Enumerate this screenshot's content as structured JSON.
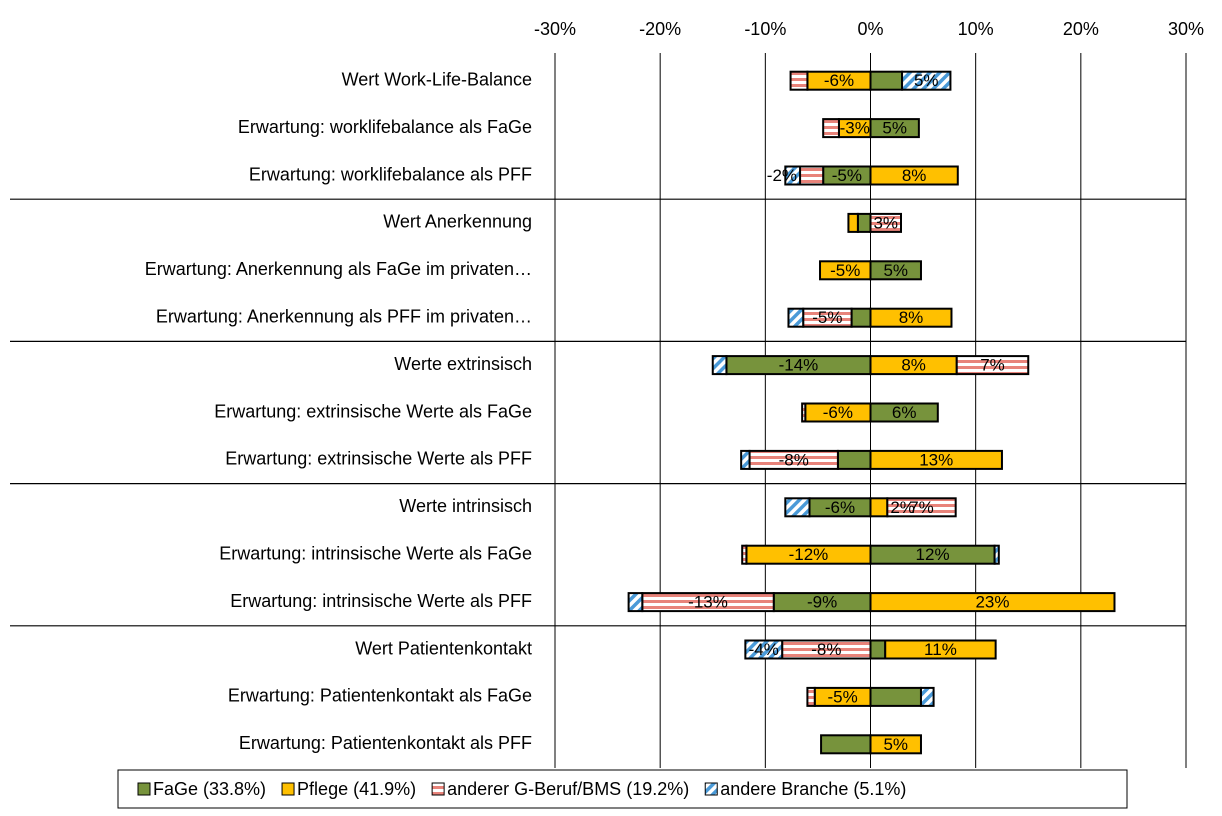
{
  "chart_data": {
    "type": "diverging-bar",
    "categories": [
      "Wert Work-Life-Balance",
      "Erwartung: worklifebalance als FaGe",
      "Erwartung: worklifebalance als PFF",
      "Wert Anerkennung",
      "Erwartung: Anerkennung als FaGe im privaten…",
      "Erwartung: Anerkennung als PFF im privaten…",
      "Werte extrinsisch",
      "Erwartung: extrinsische Werte als FaGe",
      "Erwartung: extrinsische Werte als PFF",
      "Werte intrinsisch",
      "Erwartung: intrinsische Werte als FaGe",
      "Erwartung: intrinsische Werte als PFF",
      "Wert Patientenkontakt",
      "Erwartung: Patientenkontakt als FaGe",
      "Erwartung: Patientenkontakt als PFF"
    ],
    "series": [
      {
        "name": "FaGe (33.8%)",
        "color": "#77933c",
        "pattern": "solid",
        "values": [
          3,
          4.6,
          -4.5,
          -1.2,
          4.8,
          -1.8,
          -13.7,
          6.4,
          -3.1,
          -5.8,
          11.8,
          -9.2,
          1.4,
          4.8,
          -4.7
        ],
        "value_labels": [
          null,
          "5%",
          "-5%",
          null,
          "5%",
          null,
          "-14%",
          "6%",
          null,
          "-6%",
          "12%",
          "-9%",
          null,
          null,
          null
        ]
      },
      {
        "name": "Pflege (41.9%)",
        "color": "#ffc000",
        "pattern": "solid",
        "values": [
          -6,
          -3,
          8.3,
          -0.9,
          -4.8,
          7.7,
          8.2,
          -6.2,
          12.5,
          1.6,
          -11.8,
          23.2,
          10.5,
          -5.3,
          4.8
        ],
        "value_labels": [
          "-6%",
          "-3%",
          "8%",
          null,
          "-5%",
          "8%",
          "8%",
          "-6%",
          "13%",
          "2%",
          "-12%",
          "23%",
          "11%",
          "-5%",
          "5%"
        ]
      },
      {
        "name": "anderer G-Beruf/BMS (19.2%)",
        "color": "#e8837a",
        "pattern": "horizontal",
        "values": [
          -1.6,
          -1.5,
          -2.2,
          2.9,
          0,
          -4.6,
          6.8,
          -0.3,
          -8.4,
          6.5,
          -0.4,
          -12.5,
          -8.4,
          -0.7,
          0
        ],
        "value_labels": [
          null,
          null,
          "-2%",
          "3%",
          null,
          "-5%",
          "7%",
          null,
          "-8%",
          "7%",
          null,
          "-13%",
          "-8%",
          null,
          null
        ]
      },
      {
        "name": "andere Branche (5.1%)",
        "color": "#4a9ad8",
        "pattern": "diagonal",
        "values": [
          4.6,
          0,
          -1.4,
          0,
          0,
          -1.4,
          -1.3,
          0,
          -0.8,
          -2.3,
          0.4,
          -1.3,
          -3.5,
          1.2,
          0
        ],
        "value_labels": [
          "5%",
          null,
          null,
          null,
          null,
          null,
          null,
          null,
          null,
          null,
          null,
          null,
          "-4%",
          null,
          null
        ]
      }
    ],
    "xlim": [
      -30,
      30
    ],
    "xticks": [
      {
        "value": -30,
        "label": "-30%"
      },
      {
        "value": -20,
        "label": "-20%"
      },
      {
        "value": -10,
        "label": "-10%"
      },
      {
        "value": 0,
        "label": "0%"
      },
      {
        "value": 10,
        "label": "10%"
      },
      {
        "value": 20,
        "label": "20%"
      },
      {
        "value": 30,
        "label": "30%"
      }
    ],
    "grid": true,
    "legend": "bottom"
  }
}
